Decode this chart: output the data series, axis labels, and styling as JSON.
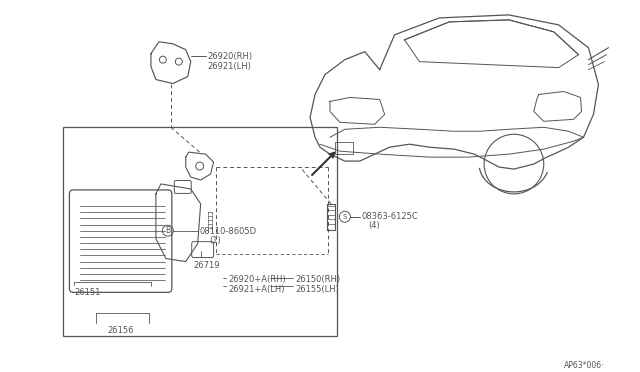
{
  "bg_color": "#ffffff",
  "line_color": "#555555",
  "text_color": "#555555",
  "watermark": "AP63*006·",
  "parts": {
    "bracket_label1": "26920(RH)",
    "bracket_label2": "26921(LH)",
    "screw_label1": "08363-6125C",
    "screw_label2": "(4)",
    "bolt_label1": "08110-8605D",
    "bolt_label2": "(1)",
    "lens_label": "26151",
    "base_label": "26156",
    "connector_label": "26719",
    "bracket_assy1": "26920+A(RH)",
    "bracket_assy2": "26921+A(LH)",
    "lamp_rh": "26150(RH)",
    "lamp_lh": "26155(LH)"
  }
}
